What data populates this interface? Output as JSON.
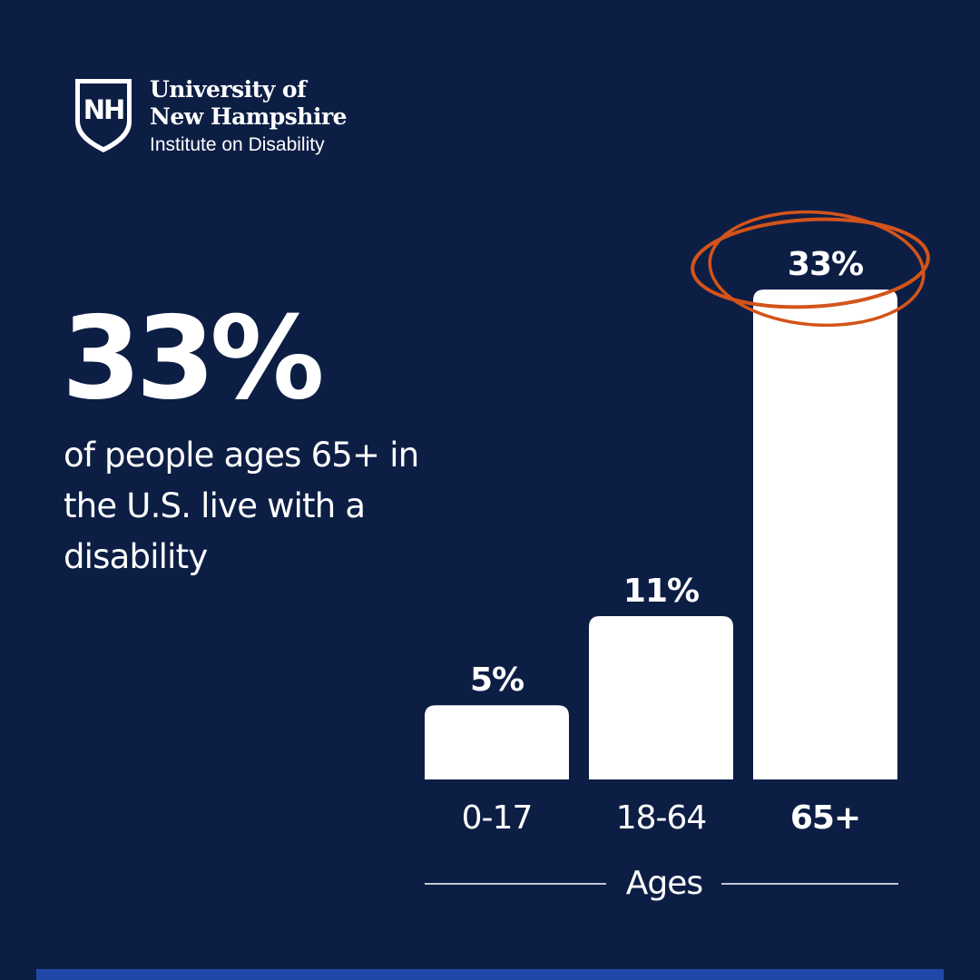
{
  "logo": {
    "line1": "University of",
    "line2": "New Hampshire",
    "line3": "Institute on Disability",
    "shield_letters": "NH"
  },
  "headline": {
    "stat": "33%",
    "caption": "of people ages 65+ in the U.S. live with a disability"
  },
  "colors": {
    "background": "#0d1e45",
    "bars": "#ffffff",
    "highlight_circle": "#d3541a",
    "bottom_bar": "#1f48a8"
  },
  "chart_data": {
    "type": "bar",
    "categories": [
      "0-17",
      "18-64",
      "65+"
    ],
    "values": [
      5,
      11,
      33
    ],
    "data_labels": [
      "5%",
      "11%",
      "33%"
    ],
    "xlabel": "Ages",
    "ylabel": "",
    "highlighted_category": "65+",
    "grid": false
  }
}
